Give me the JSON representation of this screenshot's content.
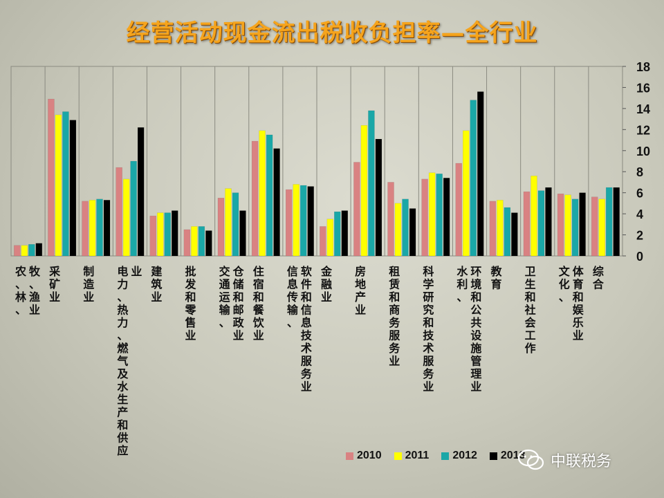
{
  "chart_data": {
    "type": "bar",
    "title": "经营活动现金流出税收负担率—全行业",
    "categories": [
      "农、林、牧、渔业",
      "采矿业",
      "制造业",
      "电力、热力、燃气及水生产和供应业",
      "建筑业",
      "批发和零售业",
      "交通运输、仓储和邮政业",
      "住宿和餐饮业",
      "信息传输、软件和信息技术服务业",
      "金融业",
      "房地产业",
      "租赁和商务服务业",
      "科学研究和技术服务业",
      "水利、环境和公共设施管理业",
      "教育",
      "卫生和社会工作",
      "文化、体育和娱乐业",
      "综合"
    ],
    "category_lines": [
      [
        "农、林、",
        "牧、渔业"
      ],
      [
        "采矿业"
      ],
      [
        "制造业"
      ],
      [
        "电力、热力、燃气及水生产和供应",
        "业"
      ],
      [
        "建筑业"
      ],
      [
        "批发和零售业"
      ],
      [
        "交通运输、",
        "仓储和邮政业"
      ],
      [
        "住宿和餐饮业"
      ],
      [
        "信息传输、",
        "软件和信息技术服务业"
      ],
      [
        "金融业"
      ],
      [
        "房地产业"
      ],
      [
        "租赁和商务服务业"
      ],
      [
        "科学研究和技术服务业"
      ],
      [
        "水利、",
        "环境和公共设施管理业"
      ],
      [
        "教育"
      ],
      [
        "卫生和社会工作"
      ],
      [
        "文化、",
        "体育和娱乐业"
      ],
      [
        "综合"
      ]
    ],
    "series": [
      {
        "name": "2010",
        "color": "#d98282",
        "values": [
          1.0,
          14.9,
          5.2,
          8.4,
          3.8,
          2.5,
          5.5,
          10.9,
          6.3,
          2.8,
          8.9,
          7.0,
          7.3,
          8.8,
          5.2,
          6.1,
          5.9,
          5.6
        ]
      },
      {
        "name": "2011",
        "color": "#ffff00",
        "values": [
          1.0,
          13.4,
          5.3,
          7.3,
          4.1,
          2.8,
          6.4,
          11.9,
          6.8,
          3.5,
          12.4,
          5.0,
          7.9,
          11.9,
          5.3,
          7.6,
          5.8,
          5.4
        ]
      },
      {
        "name": "2012",
        "color": "#1aa7a7",
        "values": [
          1.1,
          13.7,
          5.4,
          9.0,
          4.1,
          2.8,
          6.0,
          11.5,
          6.7,
          4.2,
          13.8,
          5.4,
          7.8,
          14.8,
          4.6,
          6.2,
          5.4,
          6.5
        ]
      },
      {
        "name": "2013",
        "color": "#000000",
        "values": [
          1.2,
          12.9,
          5.3,
          12.2,
          4.3,
          2.4,
          4.3,
          10.2,
          6.6,
          4.3,
          11.1,
          4.5,
          7.4,
          15.6,
          4.1,
          6.5,
          6.0,
          6.5
        ]
      }
    ],
    "yticks": [
      0,
      2,
      4,
      6,
      8,
      10,
      12,
      14,
      16,
      18
    ],
    "ylim": [
      0,
      18
    ],
    "y_axis_side": "right",
    "grid": false,
    "legend_position": "bottom-right"
  },
  "legend": [
    {
      "label": "2010",
      "color": "#d98282"
    },
    {
      "label": "2011",
      "color": "#ffff00"
    },
    {
      "label": "2012",
      "color": "#1aa7a7"
    },
    {
      "label": "2013",
      "color": "#000000"
    }
  ],
  "watermark": {
    "text": "中联税务",
    "icon": "wechat-icon"
  }
}
